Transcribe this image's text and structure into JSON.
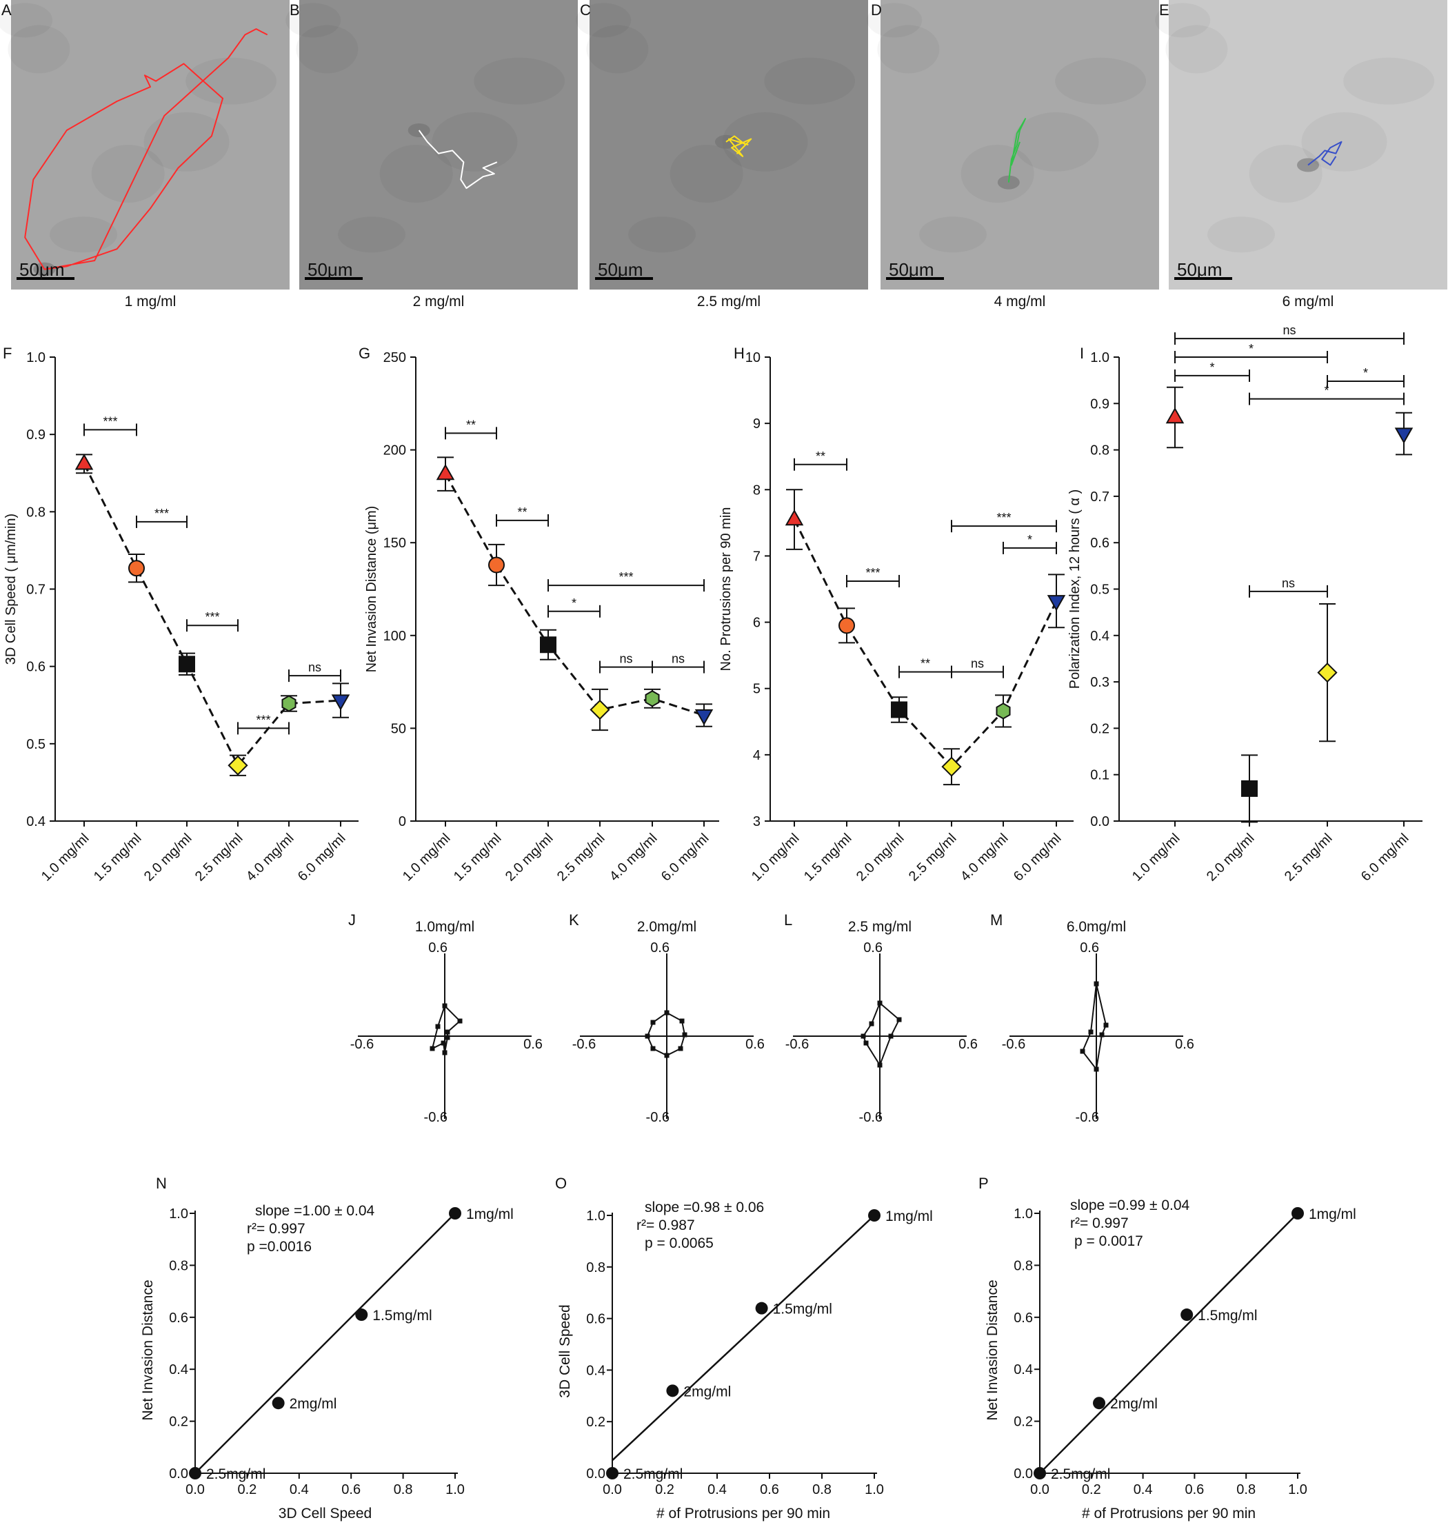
{
  "colors": {
    "red": "#e8312a",
    "orange": "#f26a2c",
    "black": "#111111",
    "yellow": "#f5ec2a",
    "green": "#77b955",
    "blue": "#1c3a9e",
    "track_red": "#ff2a2a",
    "track_white": "#ffffff",
    "track_yellow": "#ffe21a",
    "track_green": "#33c24a",
    "track_blue": "#3850c8"
  },
  "micrographs": [
    {
      "letter": "A",
      "label": "1 mg/ml",
      "scale": "50μm",
      "track_color": "track_red",
      "bg": "#a6a6a6"
    },
    {
      "letter": "B",
      "label": "2 mg/ml",
      "scale": "50μm",
      "track_color": "track_white",
      "bg": "#8e8e8e"
    },
    {
      "letter": "C",
      "label": "2.5 mg/ml",
      "scale": "50μm",
      "track_color": "track_yellow",
      "bg": "#8a8a8a"
    },
    {
      "letter": "D",
      "label": "4 mg/ml",
      "scale": "50μm",
      "track_color": "track_green",
      "bg": "#a9a9a9"
    },
    {
      "letter": "E",
      "label": "6 mg/ml",
      "scale": "50μm",
      "track_color": "track_blue",
      "bg": "#c9c9c9"
    }
  ],
  "chart_data": [
    {
      "panel": "F",
      "type": "line",
      "ylabel": "3D Cell Speed ( μm/min)",
      "ylim": [
        0.4,
        1.0
      ],
      "yticks": [
        "0.4",
        "0.5",
        "0.6",
        "0.7",
        "0.8",
        "0.9",
        "1.0"
      ],
      "categories": [
        "1.0 mg/ml",
        "1.5 mg/ml",
        "2.0 mg/ml",
        "2.5 mg/ml",
        "4.0 mg/ml",
        "6.0 mg/ml"
      ],
      "series": [
        {
          "values": [
            0.862,
            0.727,
            0.603,
            0.472,
            0.552,
            0.556
          ],
          "errors": [
            0.012,
            0.018,
            0.014,
            0.013,
            0.01,
            0.022
          ]
        }
      ],
      "markers": [
        "triangle-up",
        "circle",
        "square",
        "diamond",
        "hexagon",
        "triangle-down"
      ],
      "marker_colors": [
        "red",
        "orange",
        "black",
        "yellow",
        "green",
        "blue"
      ],
      "annotations": [
        {
          "i": 0,
          "j": 1,
          "y": 0.906,
          "text": "***"
        },
        {
          "i": 1,
          "j": 2,
          "y": 0.787,
          "text": "***"
        },
        {
          "i": 2,
          "j": 3,
          "y": 0.653,
          "text": "***"
        },
        {
          "i": 3,
          "j": 4,
          "y": 0.52,
          "text": "***"
        },
        {
          "i": 4,
          "j": 5,
          "y": 0.588,
          "text": "ns"
        }
      ]
    },
    {
      "panel": "G",
      "type": "line",
      "ylabel": "Net Invasion Distance (μm)",
      "ylim": [
        0,
        250
      ],
      "yticks": [
        "0",
        "50",
        "100",
        "150",
        "200",
        "250"
      ],
      "categories": [
        "1.0 mg/ml",
        "1.5 mg/ml",
        "2.0 mg/ml",
        "2.5 mg/ml",
        "4.0 mg/ml",
        "6.0 mg/ml"
      ],
      "series": [
        {
          "values": [
            187,
            138,
            95,
            60,
            66,
            57
          ],
          "errors": [
            9,
            11,
            8,
            11,
            5,
            6
          ]
        }
      ],
      "markers": [
        "triangle-up",
        "circle",
        "square",
        "diamond",
        "hexagon",
        "triangle-down"
      ],
      "marker_colors": [
        "red",
        "orange",
        "black",
        "yellow",
        "green",
        "blue"
      ],
      "annotations": [
        {
          "i": 0,
          "j": 1,
          "y": 209,
          "text": "**"
        },
        {
          "i": 1,
          "j": 2,
          "y": 162,
          "text": "**"
        },
        {
          "i": 2,
          "j": 5,
          "y": 127,
          "text": "***"
        },
        {
          "i": 2,
          "j": 3,
          "y": 113,
          "text": "*"
        },
        {
          "i": 3,
          "j": 4,
          "y": 83,
          "text": "ns"
        },
        {
          "i": 4,
          "j": 5,
          "y": 83,
          "text": "ns"
        }
      ]
    },
    {
      "panel": "H",
      "type": "line",
      "ylabel": "No. Protrusions per 90 min",
      "ylim": [
        3,
        10
      ],
      "yticks": [
        "3",
        "4",
        "5",
        "6",
        "7",
        "8",
        "9",
        "10"
      ],
      "categories": [
        "1.0 mg/ml",
        "1.5 mg/ml",
        "2.0 mg/ml",
        "2.5 mg/ml",
        "4.0 mg/ml",
        "6.0 mg/ml"
      ],
      "series": [
        {
          "values": [
            7.55,
            5.95,
            4.68,
            3.82,
            4.66,
            6.32
          ],
          "errors": [
            0.45,
            0.26,
            0.19,
            0.27,
            0.24,
            0.4
          ]
        }
      ],
      "markers": [
        "triangle-up",
        "circle",
        "square",
        "diamond",
        "hexagon",
        "triangle-down"
      ],
      "marker_colors": [
        "red",
        "orange",
        "black",
        "yellow",
        "green",
        "blue"
      ],
      "annotations": [
        {
          "i": 0,
          "j": 1,
          "y": 8.38,
          "text": "**"
        },
        {
          "i": 1,
          "j": 2,
          "y": 6.62,
          "text": "***"
        },
        {
          "i": 2,
          "j": 3,
          "y": 5.25,
          "text": "**"
        },
        {
          "i": 3,
          "j": 4,
          "y": 5.25,
          "text": "ns"
        },
        {
          "i": 3,
          "j": 5,
          "y": 7.45,
          "text": "***"
        },
        {
          "i": 4,
          "j": 5,
          "y": 7.12,
          "text": "*"
        }
      ]
    },
    {
      "panel": "I",
      "type": "scatter",
      "ylabel": "Polarization Index, 12 hours ( α )",
      "ylim": [
        0,
        1.0
      ],
      "yticks": [
        "0.0",
        "0.1",
        "0.2",
        "0.3",
        "0.4",
        "0.5",
        "0.6",
        "0.7",
        "0.8",
        "0.9",
        "1.0"
      ],
      "categories": [
        "1.0 mg/ml",
        "2.0 mg/ml",
        "2.5 mg/ml",
        "6.0 mg/ml"
      ],
      "series": [
        {
          "values": [
            0.87,
            0.07,
            0.32,
            0.835
          ],
          "errors": [
            0.065,
            0.072,
            0.148,
            0.045
          ]
        }
      ],
      "markers": [
        "triangle-up",
        "square",
        "diamond",
        "triangle-down"
      ],
      "marker_colors": [
        "red",
        "black",
        "yellow",
        "blue"
      ],
      "annotations": [
        {
          "i": 0,
          "j": 3,
          "y": 1.04,
          "text": "ns"
        },
        {
          "i": 0,
          "j": 2,
          "y": 1.0,
          "text": "*"
        },
        {
          "i": 0,
          "j": 1,
          "y": 0.96,
          "text": "*"
        },
        {
          "i": 2,
          "j": 3,
          "y": 0.948,
          "text": "*"
        },
        {
          "i": 1,
          "j": 3,
          "y": 0.91,
          "text": "*"
        },
        {
          "i": 1,
          "j": 2,
          "y": 0.495,
          "text": "ns"
        }
      ]
    },
    {
      "panel": "J",
      "type": "line",
      "title": "1.0mg/ml",
      "tick_labels": {
        "top": "0.6",
        "bottom": "-0.6",
        "left": "-0.6",
        "right": "0.6"
      },
      "x": [
        0.0,
        0.11,
        0.02,
        0.02,
        0.0,
        -0.01,
        -0.09,
        -0.05,
        0.0
      ],
      "y": [
        0.22,
        0.11,
        0.03,
        -0.01,
        -0.12,
        -0.05,
        -0.09,
        0.07,
        0.22
      ]
    },
    {
      "panel": "K",
      "type": "line",
      "title": "2.0mg/ml",
      "tick_labels": {
        "top": "0.6",
        "bottom": "-0.6",
        "left": "-0.6",
        "right": "0.6"
      },
      "x": [
        0.0,
        0.11,
        0.13,
        0.1,
        0.0,
        -0.1,
        -0.14,
        -0.1,
        0.0
      ],
      "y": [
        0.17,
        0.11,
        0.01,
        -0.09,
        -0.14,
        -0.09,
        0.0,
        0.1,
        0.17
      ]
    },
    {
      "panel": "L",
      "type": "line",
      "title": "2.5 mg/ml",
      "tick_labels": {
        "top": "0.6",
        "bottom": "-0.6",
        "left": "-0.6",
        "right": "0.6"
      },
      "x": [
        0.0,
        0.14,
        0.08,
        0.0,
        -0.1,
        -0.12,
        -0.06,
        0.0
      ],
      "y": [
        0.24,
        0.12,
        0.0,
        -0.21,
        -0.05,
        0.0,
        0.09,
        0.24
      ]
    },
    {
      "panel": "M",
      "type": "line",
      "title": "6.0mg/ml",
      "tick_labels": {
        "top": "0.6",
        "bottom": "-0.6",
        "left": "-0.6",
        "right": "0.6"
      },
      "x": [
        0.0,
        0.07,
        0.04,
        0.0,
        -0.1,
        -0.04,
        0.0
      ],
      "y": [
        0.38,
        0.08,
        0.01,
        -0.24,
        -0.11,
        0.03,
        0.38
      ]
    },
    {
      "panel": "N",
      "type": "scatter",
      "xlabel": "3D Cell  Speed",
      "ylabel": "Net Invasion Distance",
      "xlim": [
        0,
        1.0
      ],
      "ylim": [
        0,
        1.0
      ],
      "xticks": [
        "0.0",
        "0.2",
        "0.4",
        "0.6",
        "0.8",
        "1.0"
      ],
      "yticks": [
        "0.0",
        "0.2",
        "0.4",
        "0.6",
        "0.8",
        "1.0"
      ],
      "points": [
        {
          "x": 0.0,
          "y": 0.0,
          "label": "2.5mg/ml"
        },
        {
          "x": 0.32,
          "y": 0.27,
          "label": "2mg/ml"
        },
        {
          "x": 0.64,
          "y": 0.61,
          "label": "1.5mg/ml"
        },
        {
          "x": 1.0,
          "y": 1.0,
          "label": "1mg/ml"
        }
      ],
      "fit": {
        "x": [
          0.0,
          1.0
        ],
        "y": [
          0.0,
          1.0
        ]
      },
      "stats": [
        "slope =1.00 ± 0.04",
        "r²= 0.997",
        "p =0.0016"
      ]
    },
    {
      "panel": "O",
      "type": "scatter",
      "xlabel": "# of Protrusions per 90 min",
      "ylabel": "3D Cell Speed",
      "xlim": [
        0,
        1.0
      ],
      "ylim": [
        0,
        1.0
      ],
      "xticks": [
        "0.0",
        "0.2",
        "0.4",
        "0.6",
        "0.8",
        "1.0"
      ],
      "yticks": [
        "0.0",
        "0.2",
        "0.4",
        "0.6",
        "0.8",
        "1.0"
      ],
      "points": [
        {
          "x": 0.0,
          "y": 0.0,
          "label": "2.5mg/ml"
        },
        {
          "x": 0.23,
          "y": 0.32,
          "label": "2mg/ml"
        },
        {
          "x": 0.57,
          "y": 0.64,
          "label": "1.5mg/ml"
        },
        {
          "x": 1.0,
          "y": 1.0,
          "label": "1mg/ml"
        }
      ],
      "fit": {
        "x": [
          0.0,
          1.0
        ],
        "y": [
          0.05,
          1.0
        ]
      },
      "stats": [
        "slope =0.98 ± 0.06",
        "r²= 0.987",
        "p = 0.0065"
      ]
    },
    {
      "panel": "P",
      "type": "scatter",
      "xlabel": "# of Protrusions per 90 min",
      "ylabel": "Net Invasion  Distance",
      "xlim": [
        0,
        1.0
      ],
      "ylim": [
        0,
        1.0
      ],
      "xticks": [
        "0.0",
        "0.2",
        "0.4",
        "0.6",
        "0.8",
        "1.0"
      ],
      "yticks": [
        "0.0",
        "0.2",
        "0.4",
        "0.6",
        "0.8",
        "1.0"
      ],
      "points": [
        {
          "x": 0.0,
          "y": 0.0,
          "label": "2.5mg/ml"
        },
        {
          "x": 0.23,
          "y": 0.27,
          "label": "2mg/ml"
        },
        {
          "x": 0.57,
          "y": 0.61,
          "label": "1.5mg/ml"
        },
        {
          "x": 1.0,
          "y": 1.0,
          "label": "1mg/ml"
        }
      ],
      "fit": {
        "x": [
          0.0,
          1.0
        ],
        "y": [
          0.0,
          1.0
        ]
      },
      "stats": [
        "slope =0.99 ± 0.04",
        "r²= 0.997",
        "p = 0.0017"
      ]
    }
  ]
}
